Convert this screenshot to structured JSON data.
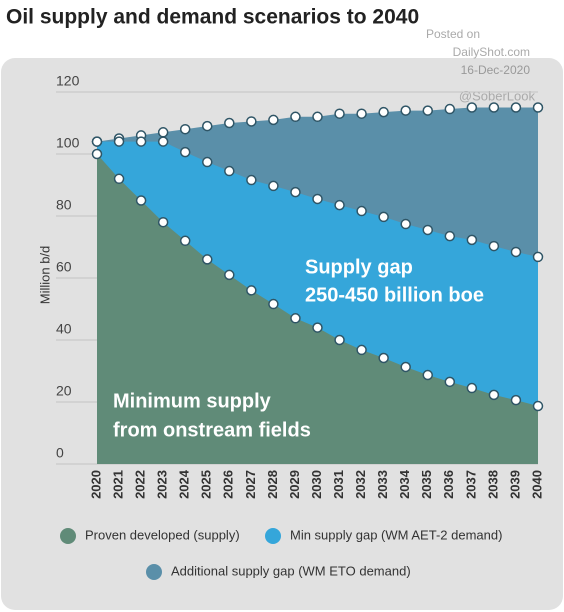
{
  "chart_data": {
    "type": "area",
    "title": "Oil supply and demand scenarios to 2040",
    "watermark": [
      "Posted on",
      "DailyShot.com",
      "16-Dec-2020",
      "@SoberLook"
    ],
    "y_label": "Million b/d",
    "annotations": [
      "Supply gap",
      "250-450 billion boe",
      "Minimum supply",
      "from onstream fields"
    ],
    "categories": [
      "2020",
      "2021",
      "2022",
      "2023",
      "2024",
      "2025",
      "2026",
      "2027",
      "2028",
      "2029",
      "2030",
      "2031",
      "2032",
      "2033",
      "2034",
      "2035",
      "2036",
      "2037",
      "2038",
      "2039",
      "2040"
    ],
    "series": [
      {
        "name": "Additional supply gap (WM ETO demand)",
        "color": "#5a8fa9",
        "values": [
          104,
          105,
          106,
          107,
          108,
          109,
          110,
          110.5,
          111,
          112,
          112,
          113,
          113,
          113.5,
          114,
          114,
          114.5,
          115,
          115,
          115,
          115
        ]
      },
      {
        "name": "Min supply gap (WM AET-2 demand)",
        "color": "#35a6da",
        "values": [
          104,
          104,
          104,
          104,
          100.6,
          97.4,
          94.5,
          91.6,
          89.7,
          87.7,
          85.5,
          83.5,
          81.6,
          79.7,
          77.4,
          75.5,
          73.5,
          72.3,
          70.3,
          68.4,
          66.8
        ]
      },
      {
        "name": "Proven developed (supply)",
        "color": "#608b78",
        "values": [
          100,
          92,
          85,
          78,
          72,
          66,
          61,
          56,
          51.6,
          47,
          44,
          40,
          36.8,
          34.2,
          31.3,
          28.7,
          26.5,
          24.5,
          22.3,
          20.6,
          18.7
        ]
      }
    ],
    "legend_order": [
      2,
      1,
      0
    ],
    "ylim": [
      0,
      120
    ],
    "yticks": [
      0,
      20,
      40,
      60,
      80,
      100,
      120
    ],
    "grid": true
  }
}
